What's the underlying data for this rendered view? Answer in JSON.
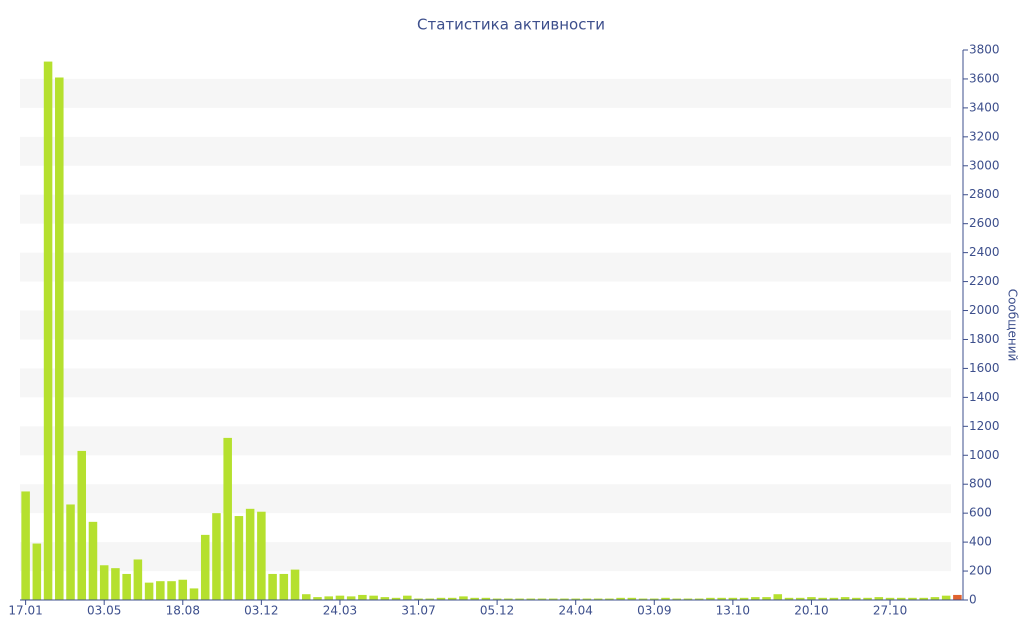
{
  "chart_data": {
    "type": "bar",
    "title": "Статистика активности",
    "y_label": "Сообщений",
    "categories": [
      "17.01",
      null,
      null,
      null,
      null,
      null,
      null,
      "03.05",
      null,
      null,
      null,
      null,
      null,
      null,
      "18.08",
      null,
      null,
      null,
      null,
      null,
      null,
      "03.12",
      null,
      null,
      null,
      null,
      null,
      null,
      "24.03",
      null,
      null,
      null,
      null,
      null,
      null,
      "31.07",
      null,
      null,
      null,
      null,
      null,
      null,
      "05.12",
      null,
      null,
      null,
      null,
      null,
      null,
      "24.04",
      null,
      null,
      null,
      null,
      null,
      null,
      "03.09",
      null,
      null,
      null,
      null,
      null,
      null,
      "13.10",
      null,
      null,
      null,
      null,
      null,
      null,
      "20.10",
      null,
      null,
      null,
      null,
      null,
      null,
      "27.10",
      null,
      null,
      null,
      null,
      null,
      null
    ],
    "values": [
      750,
      390,
      3720,
      3610,
      660,
      1030,
      540,
      240,
      220,
      180,
      280,
      120,
      130,
      130,
      140,
      80,
      450,
      600,
      1120,
      580,
      630,
      610,
      180,
      180,
      210,
      40,
      20,
      25,
      30,
      25,
      35,
      30,
      20,
      15,
      30,
      10,
      10,
      15,
      15,
      25,
      15,
      15,
      10,
      10,
      10,
      10,
      10,
      10,
      10,
      10,
      10,
      10,
      10,
      15,
      15,
      10,
      10,
      15,
      10,
      10,
      10,
      15,
      15,
      15,
      15,
      20,
      20,
      40,
      15,
      15,
      20,
      15,
      15,
      20,
      15,
      15,
      20,
      15,
      15,
      15,
      15,
      20,
      30,
      35
    ],
    "color": "#b5e02e",
    "current_color": "#e0622e",
    "ylim": [
      0,
      3800
    ],
    "yticks": [
      0,
      200,
      400,
      600,
      800,
      1000,
      1200,
      1400,
      1600,
      1800,
      2000,
      2200,
      2400,
      2600,
      2800,
      3000,
      3200,
      3400,
      3600,
      3800
    ],
    "y_axis_side": "right",
    "grid": "bands"
  }
}
